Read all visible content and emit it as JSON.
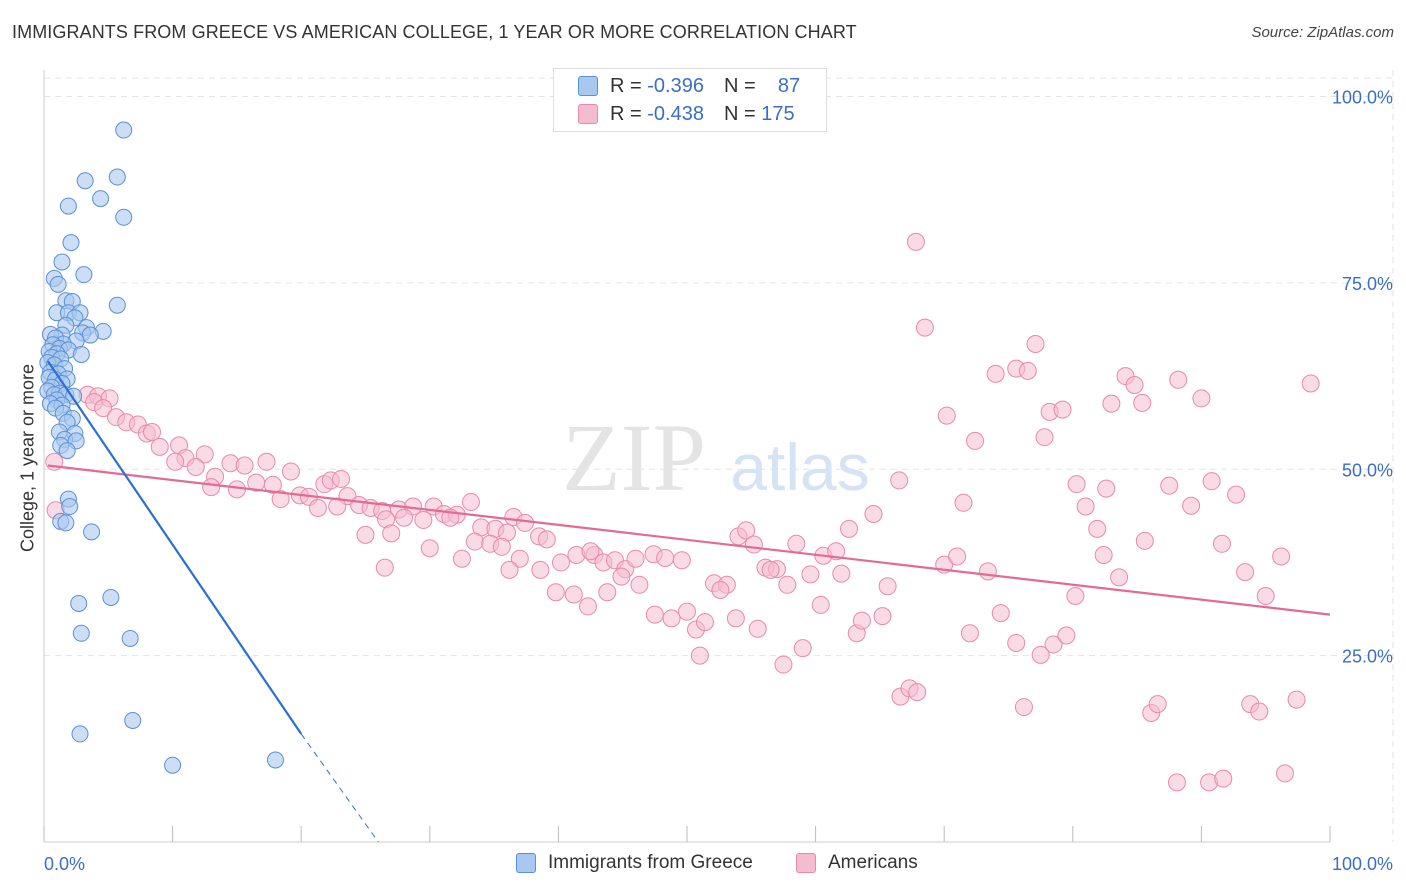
{
  "title": "IMMIGRANTS FROM GREECE VS AMERICAN COLLEGE, 1 YEAR OR MORE CORRELATION CHART",
  "source": "Source: ZipAtlas.com",
  "watermark": {
    "zip": "ZIP",
    "atlas": "atlas"
  },
  "legend": {
    "r_label": "R =",
    "n_label": "N =",
    "series1": {
      "r": "-0.396",
      "n": "87"
    },
    "series2": {
      "r": "-0.438",
      "n": "175"
    }
  },
  "colors": {
    "blue_fill": "#a9c8f0",
    "blue_stroke": "#5b8fd6",
    "blue_line": "#2a6fd1",
    "pink_fill": "#f5bccf",
    "pink_stroke": "#e88aa9",
    "pink_line": "#e26a96",
    "grid": "#e3e3e3",
    "tick_text": "#3a6fc4"
  },
  "chart_data": {
    "type": "scatter",
    "title": "IMMIGRANTS FROM GREECE VS AMERICAN COLLEGE, 1 YEAR OR MORE CORRELATION CHART",
    "xlabel": "",
    "ylabel": "College, 1 year or more",
    "xlim": [
      0,
      100
    ],
    "ylim": [
      0,
      102
    ],
    "x_tick_labels": [
      "0.0%",
      "100.0%"
    ],
    "y_tick_labels": [
      "25.0%",
      "50.0%",
      "75.0%",
      "100.0%"
    ],
    "y_ticks": [
      25,
      50,
      75,
      100
    ],
    "grid": true,
    "legend_position": "top-center",
    "series": [
      {
        "name": "Immigrants from Greece",
        "R": -0.396,
        "N": 87,
        "trend": {
          "x0": 0.3,
          "y0": 64.5,
          "x1": 20,
          "y1": 14.5,
          "dash_to_x": 26,
          "dash_to_y": 0
        },
        "points": [
          [
            6.2,
            95.5
          ],
          [
            3.2,
            88.7
          ],
          [
            5.7,
            89.2
          ],
          [
            4.4,
            86.3
          ],
          [
            1.9,
            85.3
          ],
          [
            6.2,
            83.8
          ],
          [
            2.1,
            80.4
          ],
          [
            1.4,
            77.8
          ],
          [
            0.8,
            75.6
          ],
          [
            3.1,
            76.1
          ],
          [
            1.1,
            74.8
          ],
          [
            5.7,
            72.0
          ],
          [
            1.7,
            72.6
          ],
          [
            2.2,
            72.5
          ],
          [
            1.0,
            71.0
          ],
          [
            1.9,
            71.0
          ],
          [
            2.8,
            71.0
          ],
          [
            2.4,
            70.3
          ],
          [
            1.7,
            69.3
          ],
          [
            3.3,
            69.0
          ],
          [
            4.6,
            68.5
          ],
          [
            3.0,
            68.3
          ],
          [
            3.6,
            68.0
          ],
          [
            1.4,
            68.0
          ],
          [
            0.5,
            68.1
          ],
          [
            0.9,
            67.6
          ],
          [
            2.5,
            67.2
          ],
          [
            1.5,
            66.8
          ],
          [
            0.7,
            66.7
          ],
          [
            1.2,
            66.2
          ],
          [
            1.9,
            66.0
          ],
          [
            0.4,
            65.8
          ],
          [
            1.0,
            65.5
          ],
          [
            2.9,
            65.4
          ],
          [
            0.6,
            65.0
          ],
          [
            1.3,
            64.8
          ],
          [
            0.3,
            64.3
          ],
          [
            0.8,
            64.0
          ],
          [
            1.6,
            63.5
          ],
          [
            0.5,
            63.0
          ],
          [
            1.1,
            62.8
          ],
          [
            0.4,
            62.3
          ],
          [
            0.9,
            62.0
          ],
          [
            1.8,
            62.1
          ],
          [
            1.4,
            61.5
          ],
          [
            0.6,
            61.0
          ],
          [
            0.3,
            60.5
          ],
          [
            1.2,
            60.2
          ],
          [
            0.8,
            60.0
          ],
          [
            1.7,
            60.0
          ],
          [
            2.3,
            59.8
          ],
          [
            1.0,
            59.3
          ],
          [
            0.5,
            58.8
          ],
          [
            1.4,
            58.6
          ],
          [
            0.9,
            58.2
          ],
          [
            1.5,
            57.5
          ],
          [
            2.2,
            56.8
          ],
          [
            1.8,
            56.3
          ],
          [
            1.2,
            55.0
          ],
          [
            2.4,
            54.8
          ],
          [
            1.6,
            54.0
          ],
          [
            2.5,
            53.8
          ],
          [
            1.3,
            53.2
          ],
          [
            1.8,
            52.5
          ],
          [
            1.9,
            46.0
          ],
          [
            2.0,
            45.0
          ],
          [
            1.3,
            43.0
          ],
          [
            1.7,
            42.8
          ],
          [
            3.7,
            41.6
          ],
          [
            2.7,
            32.0
          ],
          [
            5.2,
            32.8
          ],
          [
            2.9,
            28.0
          ],
          [
            6.7,
            27.3
          ],
          [
            6.9,
            16.3
          ],
          [
            2.8,
            14.5
          ],
          [
            10.0,
            10.3
          ],
          [
            18.0,
            11.0
          ]
        ]
      },
      {
        "name": "Americans",
        "R": -0.438,
        "N": 175,
        "trend": {
          "x0": 0.3,
          "y0": 50.5,
          "x1": 100,
          "y1": 30.5
        },
        "points": [
          [
            0.8,
            51.0
          ],
          [
            0.9,
            44.5
          ],
          [
            3.4,
            60.0
          ],
          [
            4.2,
            59.8
          ],
          [
            3.9,
            59.0
          ],
          [
            5.1,
            59.5
          ],
          [
            4.6,
            58.2
          ],
          [
            5.6,
            57.0
          ],
          [
            6.4,
            56.3
          ],
          [
            7.3,
            56.0
          ],
          [
            8.0,
            54.8
          ],
          [
            8.4,
            55.0
          ],
          [
            9.0,
            53.0
          ],
          [
            10.5,
            53.2
          ],
          [
            11.0,
            51.5
          ],
          [
            12.5,
            52.0
          ],
          [
            10.2,
            51.0
          ],
          [
            11.8,
            50.3
          ],
          [
            13.3,
            49.0
          ],
          [
            14.5,
            50.8
          ],
          [
            15.6,
            50.5
          ],
          [
            17.3,
            51.0
          ],
          [
            19.2,
            49.7
          ],
          [
            16.5,
            48.2
          ],
          [
            17.8,
            47.9
          ],
          [
            13.0,
            47.6
          ],
          [
            15.0,
            47.3
          ],
          [
            18.4,
            46.0
          ],
          [
            19.9,
            46.5
          ],
          [
            20.6,
            46.3
          ],
          [
            21.8,
            48.0
          ],
          [
            22.3,
            48.5
          ],
          [
            23.1,
            48.7
          ],
          [
            23.6,
            46.4
          ],
          [
            21.3,
            44.8
          ],
          [
            22.8,
            45.0
          ],
          [
            24.5,
            45.2
          ],
          [
            25.4,
            44.8
          ],
          [
            26.3,
            44.4
          ],
          [
            27.6,
            44.6
          ],
          [
            28.7,
            45.0
          ],
          [
            30.3,
            45.0
          ],
          [
            31.1,
            44.0
          ],
          [
            32.1,
            43.9
          ],
          [
            33.2,
            45.6
          ],
          [
            34.0,
            42.2
          ],
          [
            35.1,
            42.0
          ],
          [
            36.5,
            43.6
          ],
          [
            37.4,
            42.8
          ],
          [
            38.5,
            41.0
          ],
          [
            31.6,
            43.5
          ],
          [
            29.5,
            43.2
          ],
          [
            28.0,
            43.5
          ],
          [
            26.6,
            43.3
          ],
          [
            25.0,
            41.2
          ],
          [
            27.0,
            41.4
          ],
          [
            30.0,
            39.4
          ],
          [
            32.5,
            38.0
          ],
          [
            33.5,
            40.3
          ],
          [
            34.7,
            40.0
          ],
          [
            36.0,
            41.5
          ],
          [
            37.0,
            38.0
          ],
          [
            39.1,
            40.6
          ],
          [
            40.2,
            37.5
          ],
          [
            41.4,
            38.5
          ],
          [
            42.8,
            38.5
          ],
          [
            43.5,
            37.5
          ],
          [
            44.4,
            37.8
          ],
          [
            45.2,
            36.6
          ],
          [
            46.0,
            38.0
          ],
          [
            47.4,
            38.6
          ],
          [
            48.3,
            38.1
          ],
          [
            48.8,
            30.0
          ],
          [
            50.0,
            30.9
          ],
          [
            50.7,
            28.5
          ],
          [
            51.4,
            29.5
          ],
          [
            52.1,
            34.7
          ],
          [
            53.1,
            34.5
          ],
          [
            54.0,
            41.0
          ],
          [
            54.6,
            41.8
          ],
          [
            55.2,
            39.9
          ],
          [
            56.1,
            36.8
          ],
          [
            57.0,
            36.6
          ],
          [
            57.8,
            34.5
          ],
          [
            58.5,
            40.0
          ],
          [
            59.6,
            35.9
          ],
          [
            60.6,
            38.4
          ],
          [
            61.6,
            39.0
          ],
          [
            62.6,
            42.0
          ],
          [
            63.2,
            28.0
          ],
          [
            63.6,
            29.7
          ],
          [
            65.2,
            30.3
          ],
          [
            65.6,
            34.3
          ],
          [
            66.6,
            19.5
          ],
          [
            67.3,
            20.6
          ],
          [
            67.9,
            20.1
          ],
          [
            70.0,
            37.2
          ],
          [
            71.0,
            38.3
          ],
          [
            72.0,
            28.0
          ],
          [
            73.4,
            36.3
          ],
          [
            74.4,
            30.7
          ],
          [
            75.6,
            26.7
          ],
          [
            76.2,
            18.1
          ],
          [
            77.5,
            25.1
          ],
          [
            78.5,
            26.5
          ],
          [
            79.5,
            27.7
          ],
          [
            80.2,
            33.0
          ],
          [
            82.4,
            38.5
          ],
          [
            83.6,
            35.5
          ],
          [
            85.6,
            40.4
          ],
          [
            86.1,
            17.3
          ],
          [
            86.6,
            18.5
          ],
          [
            88.1,
            8.0
          ],
          [
            90.6,
            8.0
          ],
          [
            91.7,
            8.5
          ],
          [
            93.8,
            18.5
          ],
          [
            94.5,
            17.5
          ],
          [
            96.5,
            9.2
          ],
          [
            97.4,
            19.1
          ],
          [
            98.5,
            61.5
          ],
          [
            67.8,
            80.5
          ],
          [
            68.5,
            69.0
          ],
          [
            70.2,
            57.2
          ],
          [
            72.4,
            53.8
          ],
          [
            74.0,
            62.8
          ],
          [
            75.6,
            63.5
          ],
          [
            76.5,
            63.2
          ],
          [
            77.1,
            66.8
          ],
          [
            77.8,
            54.3
          ],
          [
            78.2,
            57.7
          ],
          [
            79.2,
            58.0
          ],
          [
            80.3,
            48.0
          ],
          [
            81.0,
            45.0
          ],
          [
            81.9,
            42.0
          ],
          [
            82.6,
            47.4
          ],
          [
            84.1,
            62.5
          ],
          [
            84.8,
            61.3
          ],
          [
            85.4,
            58.9
          ],
          [
            87.5,
            47.8
          ],
          [
            88.2,
            62.0
          ],
          [
            89.2,
            45.1
          ],
          [
            90.0,
            59.5
          ],
          [
            90.8,
            48.4
          ],
          [
            91.6,
            40.0
          ],
          [
            92.7,
            46.6
          ],
          [
            93.4,
            36.2
          ],
          [
            95.0,
            33.0
          ],
          [
            96.2,
            38.3
          ],
          [
            83.0,
            58.8
          ],
          [
            71.5,
            45.5
          ],
          [
            66.5,
            48.5
          ],
          [
            64.5,
            44.0
          ],
          [
            62.0,
            36.0
          ],
          [
            60.4,
            31.8
          ],
          [
            59.0,
            26.0
          ],
          [
            57.5,
            23.8
          ],
          [
            56.5,
            36.5
          ],
          [
            55.5,
            28.6
          ],
          [
            53.8,
            30.0
          ],
          [
            52.6,
            33.8
          ],
          [
            51.0,
            25.0
          ],
          [
            49.6,
            37.8
          ],
          [
            47.5,
            30.5
          ],
          [
            46.3,
            34.5
          ],
          [
            44.9,
            35.6
          ],
          [
            43.8,
            33.5
          ],
          [
            42.3,
            31.6
          ],
          [
            41.2,
            33.2
          ],
          [
            39.8,
            33.5
          ],
          [
            38.6,
            36.5
          ],
          [
            36.2,
            36.5
          ],
          [
            35.6,
            39.6
          ],
          [
            42.5,
            39.0
          ],
          [
            26.5,
            36.8
          ]
        ]
      }
    ]
  },
  "bottom_legend": {
    "series1": "Immigrants from Greece",
    "series2": "Americans"
  }
}
